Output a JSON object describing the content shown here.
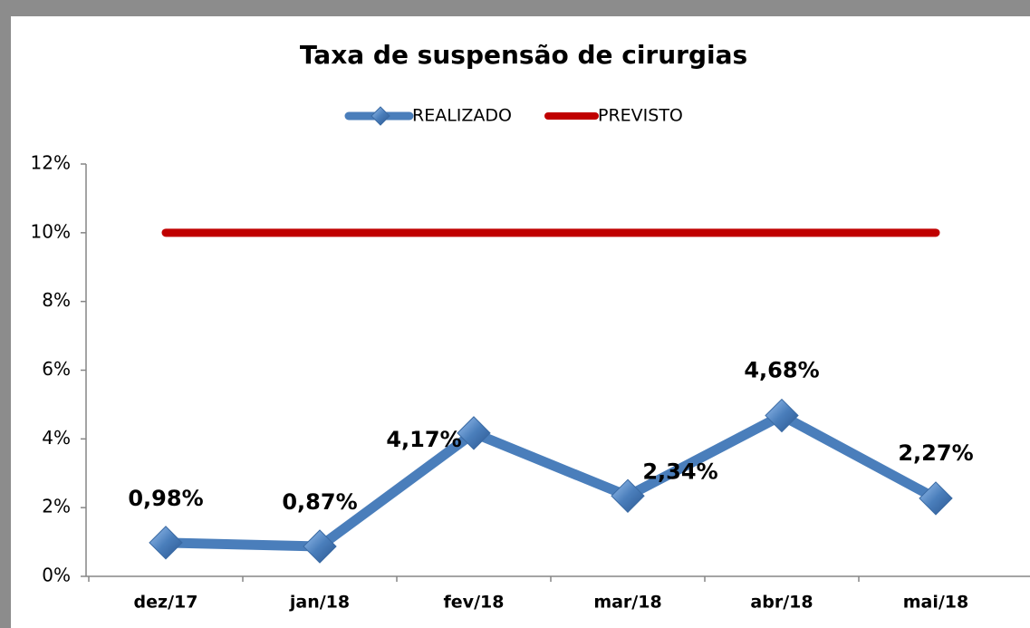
{
  "chart_data": {
    "type": "line",
    "title": "Taxa de suspensão de cirurgias",
    "categories": [
      "dez/17",
      "jan/18",
      "fev/18",
      "mar/18",
      "abr/18",
      "mai/18"
    ],
    "series": [
      {
        "name": "REALIZADO",
        "color": "#4a7ebb",
        "marker": "diamond",
        "values": [
          0.98,
          0.87,
          4.17,
          2.34,
          4.68,
          2.27
        ],
        "value_labels": [
          "0,98%",
          "0,87%",
          "4,17%",
          "2,34%",
          "4,68%",
          "2,27%"
        ]
      },
      {
        "name": "PREVISTO",
        "color": "#c00000",
        "values": [
          10,
          10,
          10,
          10,
          10,
          10
        ]
      }
    ],
    "ylim": [
      0,
      12
    ],
    "yticks": [
      {
        "value": 0,
        "label": "0%"
      },
      {
        "value": 2,
        "label": "2%"
      },
      {
        "value": 4,
        "label": "4%"
      },
      {
        "value": 6,
        "label": "6%"
      },
      {
        "value": 8,
        "label": "8%"
      },
      {
        "value": 10,
        "label": "10%"
      },
      {
        "value": 12,
        "label": "12%"
      }
    ],
    "grid": false,
    "legend": "top"
  }
}
